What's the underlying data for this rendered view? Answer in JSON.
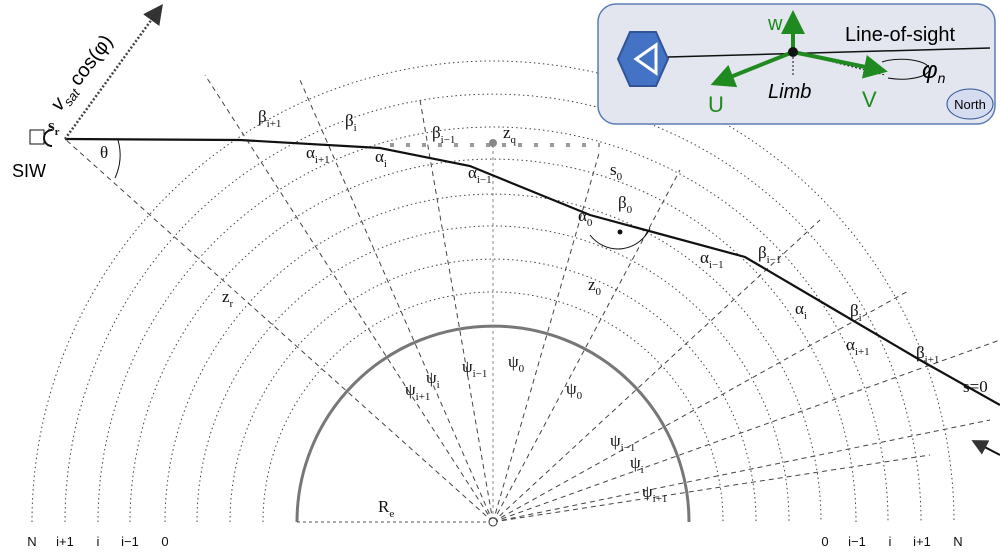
{
  "satellite": {
    "label": "SIW",
    "position": {
      "symbol": "s",
      "sub": "r"
    },
    "velocity": {
      "symbol": "v",
      "sub": "sat",
      "rest": "cos(φ)"
    }
  },
  "inset": {
    "up": "w",
    "left": "U",
    "right": "V",
    "limb": "Limb",
    "line_of_sight": "Line-of-sight",
    "angle": {
      "symbol": "φ",
      "sub": "n"
    },
    "north": "North"
  },
  "labels": [
    {
      "symbol": "β",
      "sub": "i+1"
    },
    {
      "symbol": "β",
      "sub": "i"
    },
    {
      "symbol": "β",
      "sub": "i−1"
    },
    {
      "symbol": "z",
      "sub": "q"
    },
    {
      "symbol": "α",
      "sub": "i+1"
    },
    {
      "symbol": "α",
      "sub": "i"
    },
    {
      "symbol": "α",
      "sub": "i−1"
    },
    {
      "symbol": "s",
      "sub": "0"
    },
    {
      "symbol": "α",
      "sub": "0"
    },
    {
      "symbol": "β",
      "sub": "0"
    },
    {
      "symbol": "α",
      "sub": "i−1"
    },
    {
      "symbol": "β",
      "sub": "i−1"
    },
    {
      "symbol": "α",
      "sub": "i"
    },
    {
      "symbol": "β",
      "sub": "i"
    },
    {
      "symbol": "α",
      "sub": "i+1"
    },
    {
      "symbol": "β",
      "sub": "i+1"
    },
    {
      "symbol": "θ"
    },
    {
      "symbol": "z",
      "sub": "r"
    },
    {
      "symbol": "z",
      "sub": "0"
    },
    {
      "symbol": "ψ",
      "sub": "i+1"
    },
    {
      "symbol": "ψ",
      "sub": "i"
    },
    {
      "symbol": "ψ",
      "sub": "i−1"
    },
    {
      "symbol": "ψ",
      "sub": "0"
    },
    {
      "symbol": "ψ",
      "sub": "0"
    },
    {
      "symbol": "ψ",
      "sub": "i−1"
    },
    {
      "symbol": "ψ",
      "sub": "i"
    },
    {
      "symbol": "ψ",
      "sub": "i+1"
    },
    {
      "symbol": "R",
      "sub": "e"
    },
    {
      "symbol": "s=0"
    }
  ],
  "shells_left": [
    "N",
    "i+1",
    "i",
    "i−1",
    "0"
  ],
  "shells_right": [
    "0",
    "i−1",
    "i",
    "i+1",
    "N"
  ]
}
